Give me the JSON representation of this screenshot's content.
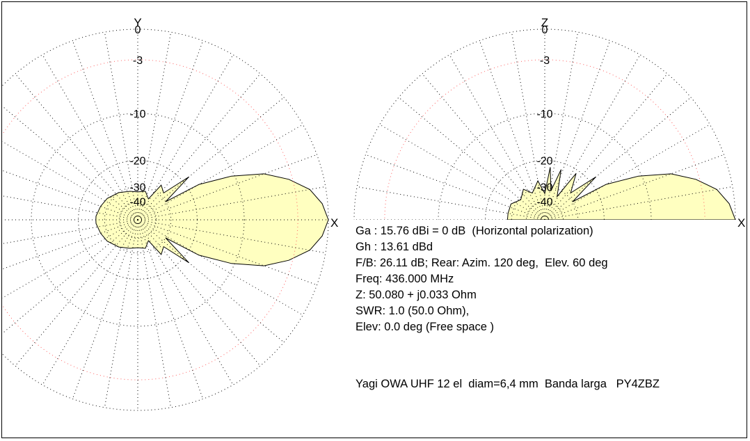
{
  "chart_data": [
    {
      "type": "polar",
      "plane": "azimuth",
      "axis_labels": {
        "top": "Y",
        "right": "X"
      },
      "ring_labels": [
        "0",
        "-3",
        "-10",
        "-20",
        "-30",
        "-40"
      ],
      "ring_db": [
        0,
        -3,
        -10,
        -20,
        -30,
        -40
      ],
      "angular_grid_deg": 10,
      "grid": true,
      "fill_color": "#ffffc0",
      "reference_ring_color": "#ff6060",
      "pattern": [
        {
          "angle_deg": 0,
          "db": 0
        },
        {
          "angle_deg": 5,
          "db": -0.5
        },
        {
          "angle_deg": 10,
          "db": -1.5
        },
        {
          "angle_deg": 15,
          "db": -3.4
        },
        {
          "angle_deg": 20,
          "db": -6
        },
        {
          "angle_deg": 25,
          "db": -10.5
        },
        {
          "angle_deg": 30,
          "db": -17
        },
        {
          "angle_deg": 33,
          "db": -30
        },
        {
          "angle_deg": 40,
          "db": -18
        },
        {
          "angle_deg": 46,
          "db": -28
        },
        {
          "angle_deg": 56,
          "db": -26
        },
        {
          "angle_deg": 63,
          "db": -36
        },
        {
          "angle_deg": 75,
          "db": -32
        },
        {
          "angle_deg": 90,
          "db": -33
        },
        {
          "angle_deg": 105,
          "db": -32
        },
        {
          "angle_deg": 125,
          "db": -30
        },
        {
          "angle_deg": 145,
          "db": -28
        },
        {
          "angle_deg": 160,
          "db": -27
        },
        {
          "angle_deg": 175,
          "db": -26
        },
        {
          "angle_deg": 180,
          "db": -26
        },
        {
          "angle_deg": 185,
          "db": -26
        },
        {
          "angle_deg": 200,
          "db": -27
        },
        {
          "angle_deg": 215,
          "db": -28
        },
        {
          "angle_deg": 235,
          "db": -30
        },
        {
          "angle_deg": 255,
          "db": -32
        },
        {
          "angle_deg": 270,
          "db": -33
        },
        {
          "angle_deg": 285,
          "db": -32
        },
        {
          "angle_deg": 297,
          "db": -36
        },
        {
          "angle_deg": 304,
          "db": -26
        },
        {
          "angle_deg": 314,
          "db": -28
        },
        {
          "angle_deg": 320,
          "db": -18
        },
        {
          "angle_deg": 327,
          "db": -30
        },
        {
          "angle_deg": 330,
          "db": -17
        },
        {
          "angle_deg": 335,
          "db": -10.5
        },
        {
          "angle_deg": 340,
          "db": -6
        },
        {
          "angle_deg": 345,
          "db": -3.4
        },
        {
          "angle_deg": 350,
          "db": -1.5
        },
        {
          "angle_deg": 355,
          "db": -0.5
        }
      ]
    },
    {
      "type": "polar",
      "plane": "elevation",
      "axis_labels": {
        "top": "Z",
        "right": "X"
      },
      "ring_labels": [
        "0",
        "-3",
        "-10",
        "-20",
        "-30",
        "-40"
      ],
      "ring_db": [
        0,
        -3,
        -10,
        -20,
        -30,
        -40
      ],
      "angular_grid_deg": 10,
      "grid": true,
      "half_plane": true,
      "fill_color": "#ffffc0",
      "reference_ring_color": "#ff6060",
      "pattern": [
        {
          "angle_deg": 0,
          "db": 0
        },
        {
          "angle_deg": 5,
          "db": -0.5
        },
        {
          "angle_deg": 10,
          "db": -1.5
        },
        {
          "angle_deg": 15,
          "db": -3.4
        },
        {
          "angle_deg": 20,
          "db": -6
        },
        {
          "angle_deg": 25,
          "db": -10.5
        },
        {
          "angle_deg": 30,
          "db": -17
        },
        {
          "angle_deg": 33,
          "db": -30
        },
        {
          "angle_deg": 40,
          "db": -18
        },
        {
          "angle_deg": 46,
          "db": -28
        },
        {
          "angle_deg": 56,
          "db": -21
        },
        {
          "angle_deg": 62,
          "db": -34
        },
        {
          "angle_deg": 72,
          "db": -22
        },
        {
          "angle_deg": 78,
          "db": -32
        },
        {
          "angle_deg": 84,
          "db": -22
        },
        {
          "angle_deg": 90,
          "db": -34
        },
        {
          "angle_deg": 100,
          "db": -27
        },
        {
          "angle_deg": 115,
          "db": -32
        },
        {
          "angle_deg": 125,
          "db": -28
        },
        {
          "angle_deg": 140,
          "db": -31
        },
        {
          "angle_deg": 155,
          "db": -28
        },
        {
          "angle_deg": 170,
          "db": -28
        },
        {
          "angle_deg": 180,
          "db": -28
        }
      ]
    }
  ],
  "info": {
    "gain_line": "Ga : 15.76 dBi = 0 dB  (Horizontal polarization)",
    "gh_line": "Gh : 13.61 dBd",
    "fb_line": "F/B: 26.11 dB; Rear: Azim. 120 deg,  Elev. 60 deg",
    "freq_line": "Freq: 436.000 MHz",
    "z_line": "Z: 50.080 + j0.033 Ohm",
    "swr_line": "SWR: 1.0 (50.0 Ohm),",
    "elev_line": "Elev: 0.0 deg (Free space )"
  },
  "title": "Yagi OWA UHF 12 el  diam=6,4 mm  Banda larga   PY4ZBZ"
}
